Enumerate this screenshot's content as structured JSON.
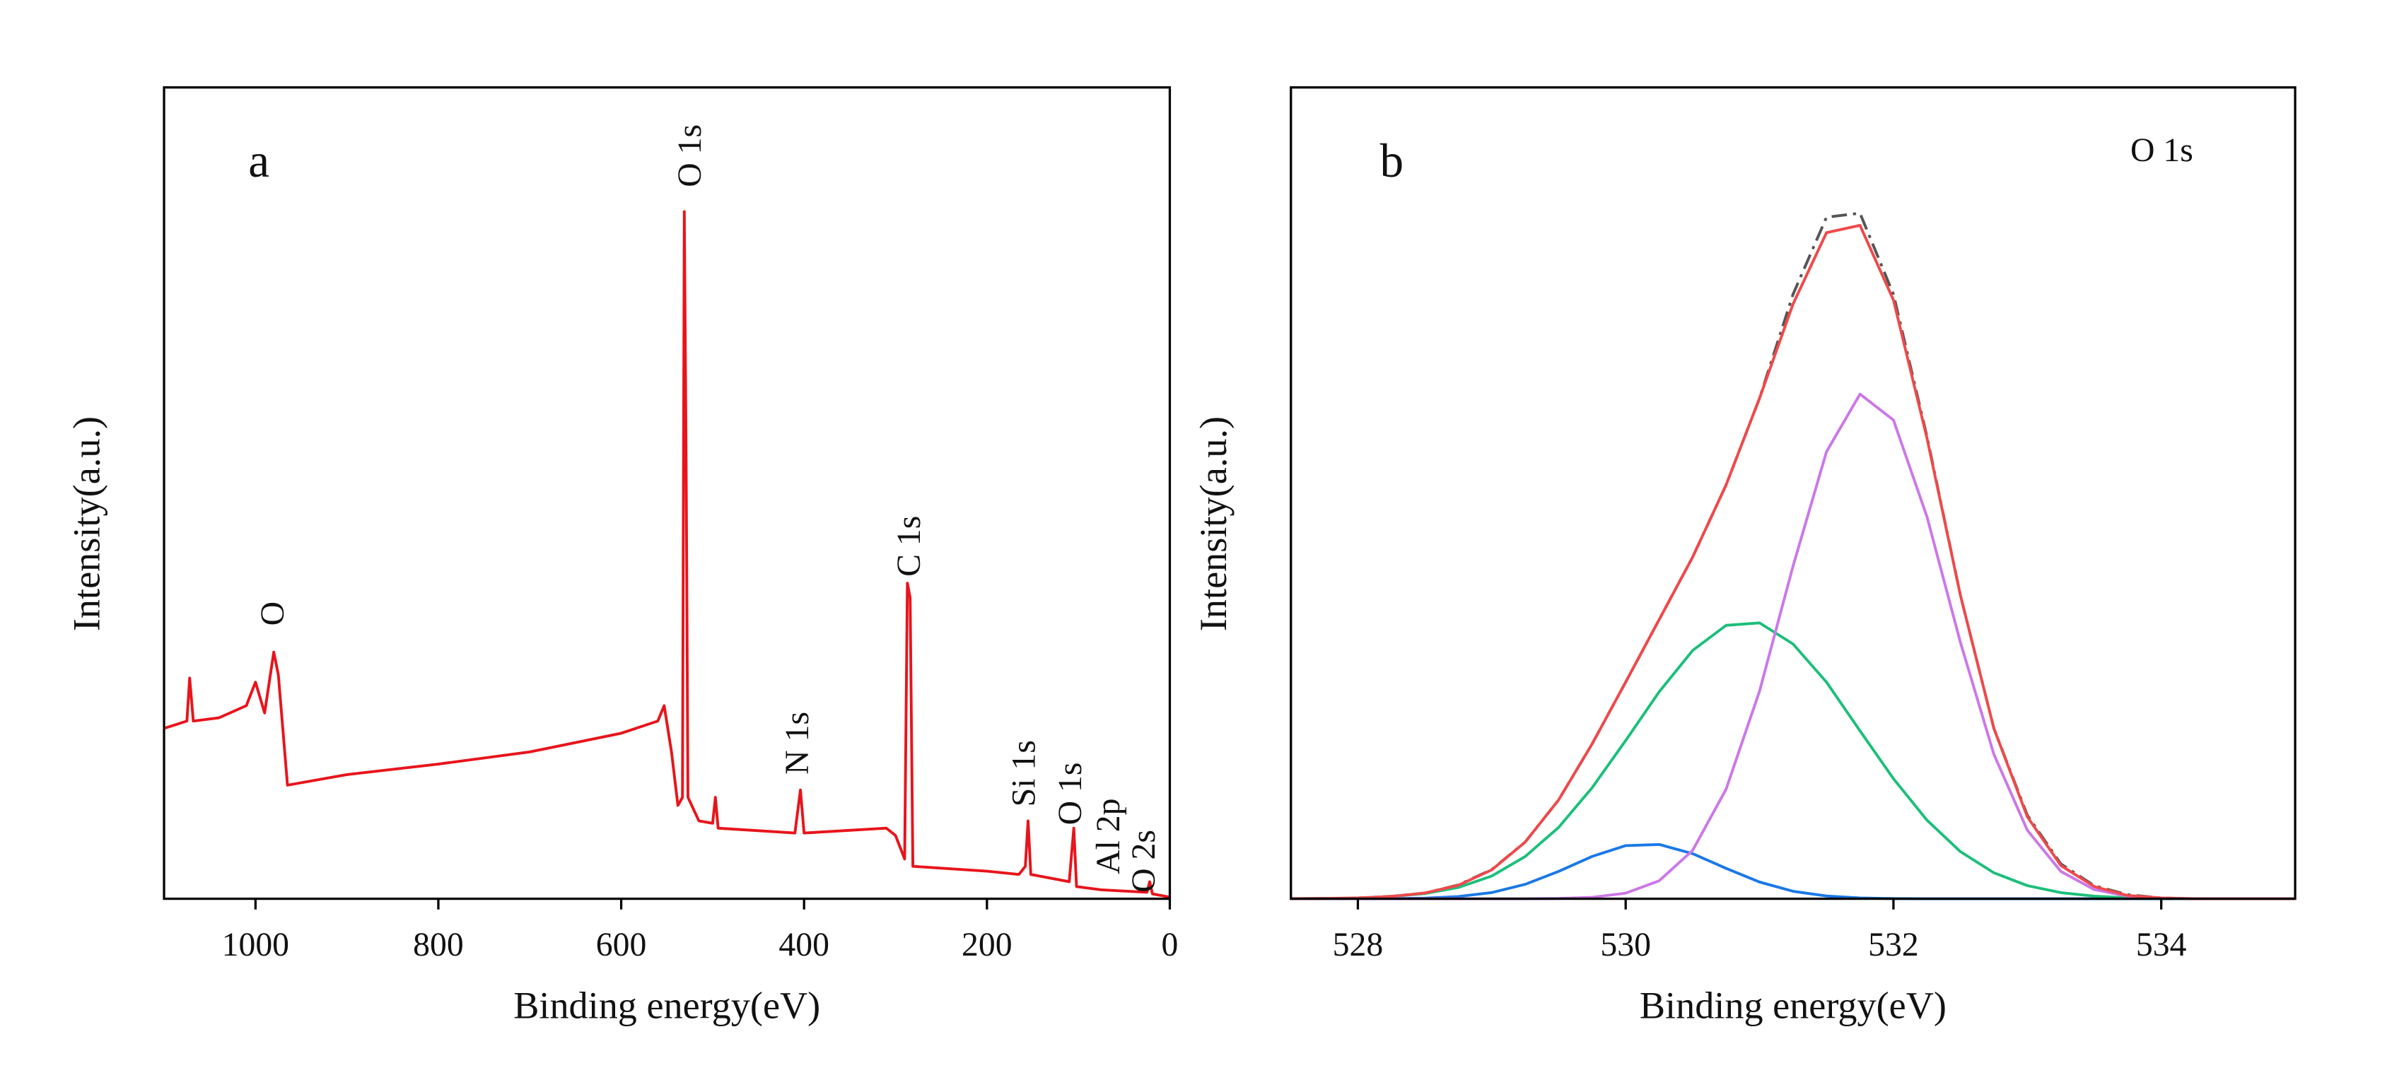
{
  "chart_data": [
    {
      "type": "line",
      "panel": "a",
      "xlabel": "Binding energy(eV)",
      "ylabel": "Intensity(a.u.)",
      "xlim": [
        1100,
        0
      ],
      "xticks": [
        1000,
        800,
        600,
        400,
        200,
        0
      ],
      "ylim": [
        0,
        100
      ],
      "x": [
        1100,
        1075,
        1072,
        1068,
        1040,
        1010,
        1000,
        990,
        980,
        975,
        965,
        900,
        800,
        700,
        600,
        560,
        553,
        545,
        538,
        533,
        531,
        529,
        527,
        515,
        500,
        497,
        494,
        410,
        404,
        400,
        310,
        300,
        290,
        287,
        284,
        281,
        200,
        165,
        158,
        155,
        152,
        110,
        105,
        102,
        75,
        25,
        22,
        19,
        0
      ],
      "series": [
        {
          "color": "#e8141b",
          "values": [
            21.0,
            21.9,
            27.2,
            21.9,
            22.3,
            23.8,
            26.7,
            22.9,
            30.4,
            27.6,
            14.0,
            15.3,
            16.6,
            18.1,
            20.4,
            21.9,
            23.8,
            18.1,
            11.5,
            12.5,
            84.7,
            54.1,
            12.5,
            9.6,
            9.3,
            12.5,
            8.7,
            8.1,
            13.4,
            8.1,
            8.7,
            7.8,
            4.9,
            38.9,
            37.1,
            4.0,
            3.4,
            3.0,
            4.0,
            9.6,
            3.0,
            2.1,
            8.7,
            1.5,
            1.1,
            0.8,
            2.1,
            0.6,
            0.2
          ]
        }
      ],
      "annotations": [
        "O",
        "O 1s",
        "N 1s",
        "C 1s",
        "Si 1s",
        "O 1s",
        "Al 2p",
        "O 2s"
      ]
    },
    {
      "type": "line",
      "panel": "b",
      "xlabel": "Binding energy(eV)",
      "ylabel": "Intensity(a.u.)",
      "annotations": [
        "O 1s"
      ],
      "xlim": [
        527.5,
        535
      ],
      "xticks": [
        528,
        530,
        532,
        534
      ],
      "ylim": [
        0,
        100
      ],
      "x": [
        527.5,
        527.75,
        528,
        528.25,
        528.5,
        528.75,
        529,
        529.25,
        529.5,
        529.75,
        530,
        530.25,
        530.5,
        530.75,
        531,
        531.25,
        531.5,
        531.75,
        532,
        532.25,
        532.5,
        532.75,
        533,
        533.25,
        533.5,
        533.75,
        534,
        534.25,
        534.5,
        534.75,
        535
      ],
      "series": [
        {
          "color": "#555555",
          "dash": "dashdot",
          "values": [
            0.0,
            0.0,
            0.1,
            0.3,
            0.7,
            1.7,
            3.6,
            7.0,
            12.2,
            19.1,
            26.7,
            34.4,
            42.1,
            51.0,
            61.7,
            74.5,
            84.0,
            84.5,
            74.5,
            57.0,
            37.4,
            21.0,
            10.3,
            4.3,
            1.6,
            0.5,
            0.1,
            0.0,
            0.0,
            0.0,
            0.0
          ]
        },
        {
          "color": "#1a78e6",
          "values": [
            0.0,
            0.0,
            0.0,
            0.02,
            0.08,
            0.27,
            0.76,
            1.78,
            3.38,
            5.22,
            6.55,
            6.69,
            5.56,
            3.75,
            2.06,
            0.92,
            0.34,
            0.1,
            0.02,
            0.0,
            0.0,
            0.0,
            0.0,
            0.0,
            0.0,
            0.0,
            0.0,
            0.0,
            0.0,
            0.0,
            0.0
          ]
        },
        {
          "color": "#1cbf7a",
          "values": [
            0.01,
            0.04,
            0.1,
            0.27,
            0.63,
            1.39,
            2.8,
            5.21,
            8.81,
            13.7,
            19.5,
            25.5,
            30.6,
            33.7,
            34.0,
            31.4,
            26.7,
            20.7,
            14.8,
            9.69,
            5.81,
            3.2,
            1.62,
            0.75,
            0.32,
            0.12,
            0.04,
            0.01,
            0.0,
            0.0,
            0.0
          ]
        },
        {
          "color": "#cc77e8",
          "values": [
            0.0,
            0.0,
            0.0,
            0.0,
            0.0,
            0.0,
            0.0,
            0.0,
            0.04,
            0.18,
            0.69,
            2.21,
            5.96,
            13.5,
            25.6,
            41.0,
            55.1,
            62.2,
            59.0,
            47.1,
            31.6,
            17.8,
            8.44,
            3.37,
            1.13,
            0.32,
            0.07,
            0.0,
            0.0,
            0.0,
            0.0
          ]
        },
        {
          "color": "#f0484a",
          "values": [
            0.01,
            0.04,
            0.1,
            0.29,
            0.71,
            1.66,
            3.56,
            6.99,
            12.2,
            19.1,
            26.7,
            34.4,
            42.1,
            51.0,
            61.7,
            73.3,
            82.1,
            83.0,
            73.8,
            56.8,
            37.4,
            21.0,
            10.1,
            4.1,
            1.5,
            0.4,
            0.1,
            0.0,
            0.0,
            0.0,
            0.0
          ]
        }
      ]
    }
  ]
}
